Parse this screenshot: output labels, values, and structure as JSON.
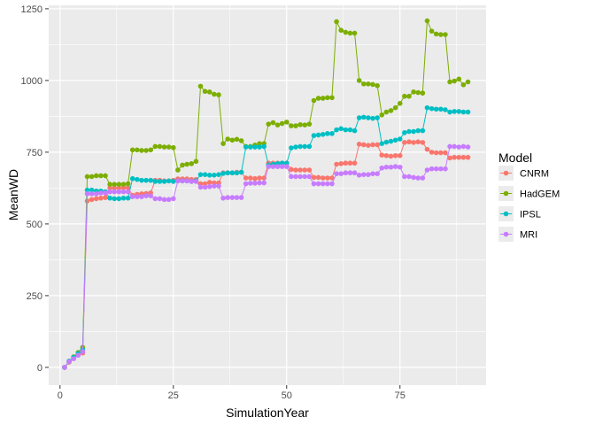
{
  "chart_data": {
    "type": "line",
    "xlabel": "SimulationYear",
    "ylabel": "MeanWD",
    "xlim": [
      -2.5,
      94
    ],
    "ylim": [
      -62,
      1262
    ],
    "x_ticks": [
      0,
      25,
      50,
      75
    ],
    "y_ticks": [
      0,
      250,
      500,
      750,
      1000,
      1250
    ],
    "grid": true,
    "legend": {
      "title": "Model",
      "position": "right"
    },
    "series": [
      {
        "name": "CNRM",
        "color": "#F8766D",
        "x": [
          1,
          2,
          3,
          4,
          5,
          6,
          7,
          8,
          9,
          10,
          11,
          12,
          13,
          14,
          15,
          16,
          17,
          18,
          19,
          20,
          21,
          22,
          23,
          24,
          25,
          26,
          27,
          28,
          29,
          30,
          31,
          32,
          33,
          34,
          35,
          36,
          37,
          38,
          39,
          40,
          41,
          42,
          43,
          44,
          45,
          46,
          47,
          48,
          49,
          50,
          51,
          52,
          53,
          54,
          55,
          56,
          57,
          58,
          59,
          60,
          61,
          62,
          63,
          64,
          65,
          66,
          67,
          68,
          69,
          70,
          71,
          72,
          73,
          74,
          75,
          76,
          77,
          78,
          79,
          80,
          81,
          82,
          83,
          84,
          85,
          86,
          87,
          88,
          89,
          90
        ],
        "y": [
          0,
          18,
          35,
          45,
          50,
          580,
          585,
          588,
          590,
          592,
          625,
          625,
          625,
          626,
          626,
          600,
          603,
          605,
          606,
          608,
          652,
          652,
          650,
          650,
          652,
          657,
          657,
          657,
          655,
          655,
          640,
          640,
          645,
          643,
          643,
          678,
          678,
          678,
          680,
          680,
          660,
          660,
          658,
          660,
          660,
          712,
          712,
          712,
          712,
          712,
          690,
          688,
          688,
          688,
          688,
          662,
          662,
          660,
          660,
          660,
          708,
          710,
          712,
          712,
          712,
          778,
          776,
          774,
          776,
          776,
          740,
          738,
          736,
          738,
          738,
          784,
          786,
          784,
          786,
          784,
          760,
          750,
          748,
          748,
          748,
          730,
          732,
          732,
          732,
          732
        ]
      },
      {
        "name": "HadGEM",
        "color": "#7CAE00",
        "x": [
          1,
          2,
          3,
          4,
          5,
          6,
          7,
          8,
          9,
          10,
          11,
          12,
          13,
          14,
          15,
          16,
          17,
          18,
          19,
          20,
          21,
          22,
          23,
          24,
          25,
          26,
          27,
          28,
          29,
          30,
          31,
          32,
          33,
          34,
          35,
          36,
          37,
          38,
          39,
          40,
          41,
          42,
          43,
          44,
          45,
          46,
          47,
          48,
          49,
          50,
          51,
          52,
          53,
          54,
          55,
          56,
          57,
          58,
          59,
          60,
          61,
          62,
          63,
          64,
          65,
          66,
          67,
          68,
          69,
          70,
          71,
          72,
          73,
          74,
          75,
          76,
          77,
          78,
          79,
          80,
          81,
          82,
          83,
          84,
          85,
          86,
          87,
          88,
          89,
          90
        ],
        "y": [
          0,
          20,
          37,
          52,
          70,
          665,
          665,
          668,
          668,
          668,
          638,
          638,
          638,
          638,
          640,
          758,
          758,
          756,
          756,
          758,
          770,
          770,
          768,
          768,
          766,
          688,
          705,
          708,
          710,
          718,
          980,
          962,
          960,
          952,
          950,
          780,
          796,
          792,
          795,
          790,
          770,
          770,
          775,
          780,
          780,
          848,
          853,
          845,
          850,
          855,
          842,
          842,
          846,
          845,
          848,
          930,
          938,
          938,
          940,
          940,
          1205,
          1175,
          1168,
          1165,
          1165,
          1000,
          988,
          988,
          986,
          982,
          880,
          890,
          895,
          905,
          920,
          945,
          945,
          960,
          958,
          956,
          1208,
          1172,
          1162,
          1160,
          1160,
          995,
          998,
          1005,
          985,
          995
        ]
      },
      {
        "name": "IPSL",
        "color": "#00BFC4",
        "x": [
          1,
          2,
          3,
          4,
          5,
          6,
          7,
          8,
          9,
          10,
          11,
          12,
          13,
          14,
          15,
          16,
          17,
          18,
          19,
          20,
          21,
          22,
          23,
          24,
          25,
          26,
          27,
          28,
          29,
          30,
          31,
          32,
          33,
          34,
          35,
          36,
          37,
          38,
          39,
          40,
          41,
          42,
          43,
          44,
          45,
          46,
          47,
          48,
          49,
          50,
          51,
          52,
          53,
          54,
          55,
          56,
          57,
          58,
          59,
          60,
          61,
          62,
          63,
          64,
          65,
          66,
          67,
          68,
          69,
          70,
          71,
          72,
          73,
          74,
          75,
          76,
          77,
          78,
          79,
          80,
          81,
          82,
          83,
          84,
          85,
          86,
          87,
          88,
          89,
          90
        ],
        "y": [
          0,
          22,
          35,
          48,
          62,
          618,
          618,
          615,
          615,
          612,
          590,
          588,
          588,
          590,
          590,
          658,
          655,
          652,
          652,
          652,
          648,
          648,
          648,
          650,
          648,
          650,
          650,
          650,
          648,
          650,
          672,
          672,
          670,
          670,
          672,
          676,
          678,
          678,
          678,
          680,
          768,
          768,
          768,
          768,
          770,
          705,
          708,
          710,
          712,
          712,
          765,
          768,
          770,
          770,
          770,
          808,
          810,
          812,
          815,
          815,
          828,
          832,
          828,
          828,
          825,
          870,
          872,
          870,
          868,
          870,
          780,
          785,
          788,
          792,
          796,
          818,
          822,
          822,
          825,
          825,
          905,
          902,
          900,
          900,
          898,
          890,
          892,
          892,
          890,
          890
        ]
      },
      {
        "name": "MRI",
        "color": "#C77CFF",
        "x": [
          1,
          2,
          3,
          4,
          5,
          6,
          7,
          8,
          9,
          10,
          11,
          12,
          13,
          14,
          15,
          16,
          17,
          18,
          19,
          20,
          21,
          22,
          23,
          24,
          25,
          26,
          27,
          28,
          29,
          30,
          31,
          32,
          33,
          34,
          35,
          36,
          37,
          38,
          39,
          40,
          41,
          42,
          43,
          44,
          45,
          46,
          47,
          48,
          49,
          50,
          51,
          52,
          53,
          54,
          55,
          56,
          57,
          58,
          59,
          60,
          61,
          62,
          63,
          64,
          65,
          66,
          67,
          68,
          69,
          70,
          71,
          72,
          73,
          74,
          75,
          76,
          77,
          78,
          79,
          80,
          81,
          82,
          83,
          84,
          85,
          86,
          87,
          88,
          89,
          90
        ],
        "y": [
          0,
          20,
          30,
          42,
          55,
          605,
          605,
          605,
          608,
          608,
          612,
          612,
          612,
          612,
          612,
          595,
          595,
          595,
          598,
          598,
          588,
          588,
          585,
          585,
          588,
          650,
          650,
          650,
          648,
          648,
          628,
          628,
          630,
          632,
          632,
          590,
          592,
          592,
          592,
          592,
          640,
          642,
          642,
          643,
          643,
          700,
          700,
          700,
          700,
          700,
          665,
          665,
          665,
          665,
          665,
          640,
          640,
          640,
          640,
          640,
          675,
          675,
          678,
          678,
          678,
          670,
          672,
          672,
          675,
          675,
          695,
          698,
          698,
          700,
          698,
          665,
          665,
          662,
          660,
          660,
          688,
          692,
          692,
          692,
          692,
          770,
          770,
          768,
          770,
          768
        ]
      }
    ]
  }
}
